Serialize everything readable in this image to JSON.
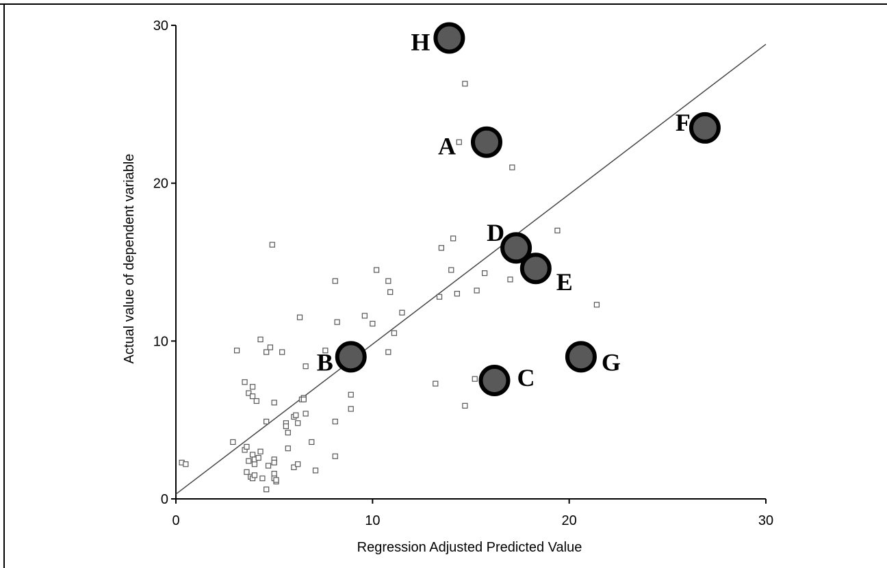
{
  "chart_data": {
    "type": "scatter",
    "xlabel": "Regression Adjusted Predicted Value",
    "ylabel": "Actual value of dependent variable",
    "xlim": [
      0,
      30
    ],
    "ylim": [
      0,
      30
    ],
    "xticks": [
      "0",
      "10",
      "20",
      "30"
    ],
    "yticks": [
      "0",
      "10",
      "20",
      "30"
    ],
    "grid": false,
    "legend": "none",
    "fit_line": {
      "x": [
        0,
        30
      ],
      "y": [
        0.3,
        28.8
      ]
    },
    "series": [
      {
        "marker": "small-square",
        "points": [
          [
            0.3,
            2.3
          ],
          [
            0.5,
            2.2
          ],
          [
            2.9,
            3.6
          ],
          [
            3.1,
            9.4
          ],
          [
            3.5,
            7.4
          ],
          [
            3.5,
            3.1
          ],
          [
            3.6,
            3.3
          ],
          [
            3.6,
            1.7
          ],
          [
            3.7,
            6.7
          ],
          [
            3.7,
            2.4
          ],
          [
            3.8,
            1.4
          ],
          [
            3.9,
            1.3
          ],
          [
            3.9,
            2.8
          ],
          [
            3.9,
            6.5
          ],
          [
            3.9,
            7.1
          ],
          [
            4.0,
            2.2
          ],
          [
            4.0,
            1.5
          ],
          [
            4.0,
            2.5
          ],
          [
            4.1,
            6.2
          ],
          [
            4.2,
            2.6
          ],
          [
            4.3,
            3.0
          ],
          [
            4.3,
            10.1
          ],
          [
            4.4,
            1.3
          ],
          [
            4.6,
            9.3
          ],
          [
            4.6,
            4.9
          ],
          [
            4.6,
            0.6
          ],
          [
            4.7,
            2.1
          ],
          [
            4.8,
            9.6
          ],
          [
            4.9,
            16.1
          ],
          [
            5.0,
            6.1
          ],
          [
            5.0,
            2.5
          ],
          [
            5.0,
            2.3
          ],
          [
            5.0,
            1.6
          ],
          [
            5.0,
            1.3
          ],
          [
            5.1,
            1.1
          ],
          [
            5.1,
            1.2
          ],
          [
            5.4,
            9.3
          ],
          [
            5.6,
            4.8
          ],
          [
            5.6,
            4.6
          ],
          [
            5.7,
            4.2
          ],
          [
            5.7,
            3.2
          ],
          [
            6.0,
            5.2
          ],
          [
            6.0,
            2.0
          ],
          [
            6.1,
            5.3
          ],
          [
            6.2,
            2.2
          ],
          [
            6.2,
            4.8
          ],
          [
            6.3,
            11.5
          ],
          [
            6.4,
            6.3
          ],
          [
            6.5,
            6.4
          ],
          [
            6.5,
            6.3
          ],
          [
            6.6,
            8.4
          ],
          [
            6.6,
            5.4
          ],
          [
            6.9,
            3.6
          ],
          [
            7.1,
            1.8
          ],
          [
            7.6,
            9.4
          ],
          [
            8.1,
            13.8
          ],
          [
            8.1,
            4.9
          ],
          [
            8.1,
            2.7
          ],
          [
            8.2,
            11.2
          ],
          [
            8.9,
            5.7
          ],
          [
            8.9,
            6.6
          ],
          [
            9.6,
            11.6
          ],
          [
            10.0,
            11.1
          ],
          [
            10.2,
            14.5
          ],
          [
            10.8,
            13.8
          ],
          [
            10.8,
            9.3
          ],
          [
            10.9,
            13.1
          ],
          [
            11.1,
            10.5
          ],
          [
            11.5,
            11.8
          ],
          [
            13.2,
            7.3
          ],
          [
            13.4,
            12.8
          ],
          [
            13.5,
            15.9
          ],
          [
            14.0,
            14.5
          ],
          [
            14.1,
            16.5
          ],
          [
            14.3,
            13.0
          ],
          [
            14.4,
            22.6
          ],
          [
            14.7,
            26.3
          ],
          [
            14.7,
            5.9
          ],
          [
            15.2,
            7.6
          ],
          [
            15.3,
            13.2
          ],
          [
            15.7,
            14.3
          ],
          [
            17.0,
            13.9
          ],
          [
            17.1,
            21.0
          ],
          [
            19.4,
            17.0
          ],
          [
            21.4,
            12.3
          ]
        ]
      },
      {
        "marker": "highlight-circle",
        "points": [
          {
            "label": "H",
            "x": 13.9,
            "y": 29.2
          },
          {
            "label": "A",
            "x": 15.8,
            "y": 22.6
          },
          {
            "label": "F",
            "x": 26.9,
            "y": 23.5
          },
          {
            "label": "D",
            "x": 17.3,
            "y": 15.9
          },
          {
            "label": "E",
            "x": 18.3,
            "y": 14.6
          },
          {
            "label": "B",
            "x": 8.9,
            "y": 9.0
          },
          {
            "label": "C",
            "x": 16.2,
            "y": 7.5
          },
          {
            "label": "G",
            "x": 20.6,
            "y": 9.0
          }
        ]
      }
    ]
  },
  "colors": {
    "axis": "#000000",
    "fit_line": "#444444",
    "marker_stroke": "#555555",
    "highlight_fill": "#595959",
    "highlight_stroke": "#000000"
  }
}
